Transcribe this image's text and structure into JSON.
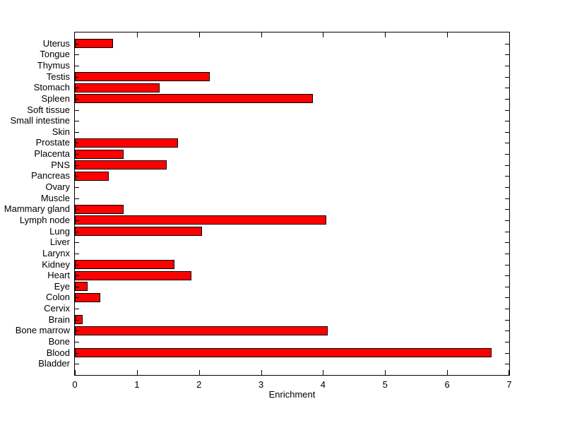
{
  "chart_data": {
    "type": "bar",
    "orientation": "horizontal",
    "xlabel": "Enrichment",
    "xlim": [
      0,
      7
    ],
    "xticks": [
      0,
      1,
      2,
      3,
      4,
      5,
      6,
      7
    ],
    "grid": false,
    "bar_color": "#ff0000",
    "bar_edge_color": "#000000",
    "axis_color": "#000000",
    "background_color": "#ffffff",
    "categories": [
      "Uterus",
      "Tongue",
      "Thymus",
      "Testis",
      "Stomach",
      "Spleen",
      "Soft tissue",
      "Small intestine",
      "Skin",
      "Prostate",
      "Placenta",
      "PNS",
      "Pancreas",
      "Ovary",
      "Muscle",
      "Mammary gland",
      "Lymph node",
      "Lung",
      "Liver",
      "Larynx",
      "Kidney",
      "Heart",
      "Eye",
      "Colon",
      "Cervix",
      "Brain",
      "Bone marrow",
      "Bone",
      "Blood",
      "Bladder"
    ],
    "values": [
      0.61,
      0,
      0,
      2.17,
      1.37,
      3.84,
      0,
      0,
      0,
      1.66,
      0.78,
      1.48,
      0.55,
      0,
      0,
      0.79,
      4.05,
      2.05,
      0,
      0,
      1.6,
      1.88,
      0.21,
      0.41,
      0,
      0.13,
      4.07,
      0,
      6.71,
      0
    ]
  }
}
